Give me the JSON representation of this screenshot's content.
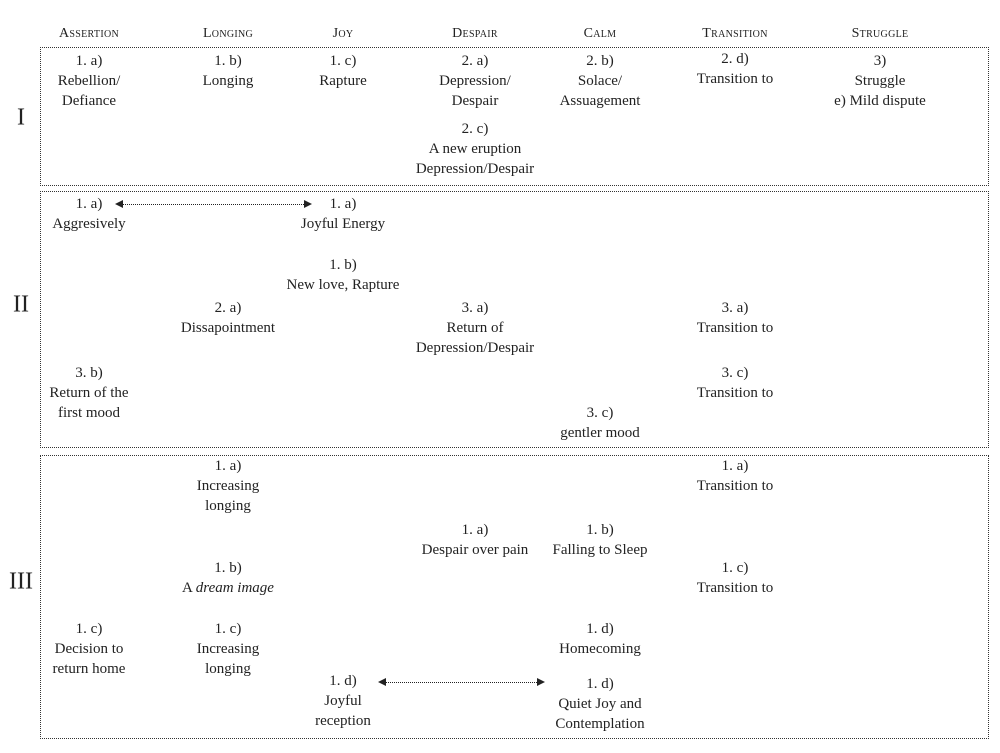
{
  "columns": [
    "Assertion",
    "Longing",
    "Joy",
    "Despair",
    "Calm",
    "Transition",
    "Struggle"
  ],
  "sections": [
    {
      "numeral": "I",
      "items": [
        {
          "column": "Assertion",
          "lines": [
            "1. a)",
            "Rebellion/",
            "Defiance"
          ]
        },
        {
          "column": "Longing",
          "lines": [
            "1. b)",
            "Longing"
          ]
        },
        {
          "column": "Joy",
          "lines": [
            "1. c)",
            "Rapture"
          ]
        },
        {
          "column": "Despair",
          "lines": [
            "2. a)",
            "Depression/",
            "Despair"
          ]
        },
        {
          "column": "Calm",
          "lines": [
            "2. b)",
            "Solace/",
            "Assuagement"
          ]
        },
        {
          "column": "Transition",
          "lines": [
            "2. d)",
            "Transition to"
          ]
        },
        {
          "column": "Struggle",
          "lines": [
            "3)",
            "Struggle",
            "e) Mild dispute"
          ]
        },
        {
          "column": "Despair",
          "lines": [
            "2. c)",
            "A new eruption",
            "Depression/Despair"
          ]
        }
      ]
    },
    {
      "numeral": "II",
      "items": [
        {
          "column": "Assertion",
          "lines": [
            "1. a)",
            "Aggresively"
          ]
        },
        {
          "column": "Joy",
          "lines": [
            "1. a)",
            "Joyful Energy"
          ]
        },
        {
          "column": "Joy",
          "lines": [
            "1. b)",
            "New love, Rapture"
          ]
        },
        {
          "column": "Longing",
          "lines": [
            "2. a)",
            "Dissapointment"
          ]
        },
        {
          "column": "Despair",
          "lines": [
            "3. a)",
            "Return of",
            "Depression/Despair"
          ]
        },
        {
          "column": "Transition",
          "lines": [
            "3. a)",
            "Transition to"
          ]
        },
        {
          "column": "Assertion",
          "lines": [
            "3. b)",
            "Return of the",
            "first mood"
          ]
        },
        {
          "column": "Transition",
          "lines": [
            "3. c)",
            "Transition to"
          ]
        },
        {
          "column": "Calm",
          "lines": [
            "3. c)",
            "gentler mood"
          ]
        }
      ]
    },
    {
      "numeral": "III",
      "items": [
        {
          "column": "Longing",
          "lines": [
            "1. a)",
            "Increasing",
            "longing"
          ]
        },
        {
          "column": "Transition",
          "lines": [
            "1. a)",
            "Transition to"
          ]
        },
        {
          "column": "Despair",
          "lines": [
            "1. a)",
            "Despair over pain"
          ]
        },
        {
          "column": "Calm",
          "lines": [
            "1. b)",
            "Falling to Sleep"
          ]
        },
        {
          "column": "Longing",
          "lines": [
            "1. b)",
            {
              "plain": "A ",
              "em": "dream image"
            }
          ]
        },
        {
          "column": "Transition",
          "lines": [
            "1. c)",
            "Transition to"
          ]
        },
        {
          "column": "Assertion",
          "lines": [
            "1. c)",
            "Decision to",
            "return home"
          ]
        },
        {
          "column": "Longing",
          "lines": [
            "1. c)",
            "Increasing",
            "longing"
          ]
        },
        {
          "column": "Calm",
          "lines": [
            "1. d)",
            "Homecoming"
          ]
        },
        {
          "column": "Joy",
          "lines": [
            "1. d)",
            "Joyful",
            "reception"
          ]
        },
        {
          "column": "Calm",
          "lines": [
            "1. d)",
            "Quiet Joy and",
            "Contemplation"
          ]
        }
      ]
    }
  ],
  "connections": [
    {
      "section": "II",
      "from": "Aggresively",
      "to": "Joyful Energy",
      "style": "dotted double arrow"
    },
    {
      "section": "III",
      "from": "Joyful reception",
      "to": "Quiet Joy and Contemplation",
      "style": "dotted double arrow"
    }
  ]
}
